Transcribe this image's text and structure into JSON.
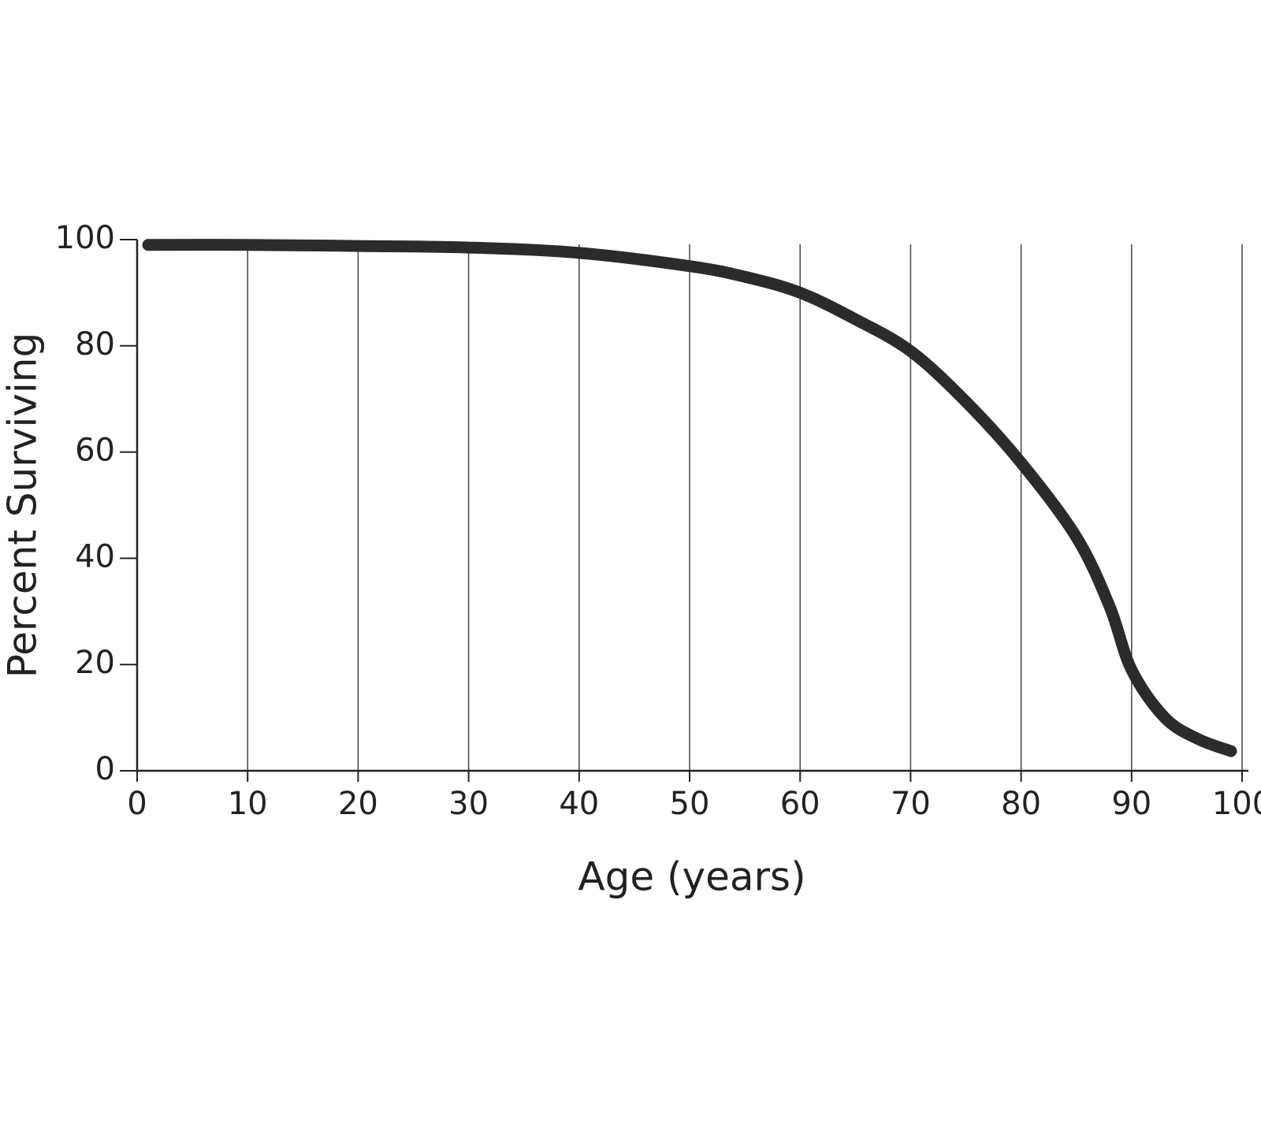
{
  "chart_data": {
    "type": "line",
    "xlabel": "Age (years)",
    "ylabel": "Percent Surviving",
    "x": [
      1,
      10,
      20,
      30,
      40,
      50,
      55,
      60,
      65,
      70,
      75,
      80,
      85,
      88,
      90,
      93,
      96,
      99
    ],
    "series": [
      {
        "name": "Percent Surviving",
        "color": "#2b2b2b",
        "values": [
          99,
          99,
          98.8,
          98.5,
          97.5,
          95,
          93,
          90,
          85,
          79,
          69.5,
          58,
          44,
          31,
          19,
          10,
          6,
          3.7
        ]
      }
    ],
    "xlim": [
      0,
      100
    ],
    "xticks": [
      0,
      10,
      20,
      30,
      40,
      50,
      60,
      70,
      80,
      90,
      100
    ],
    "ylim": [
      0,
      100
    ],
    "yticks": [
      0,
      20,
      40,
      60,
      80,
      100
    ],
    "grid": "x"
  }
}
